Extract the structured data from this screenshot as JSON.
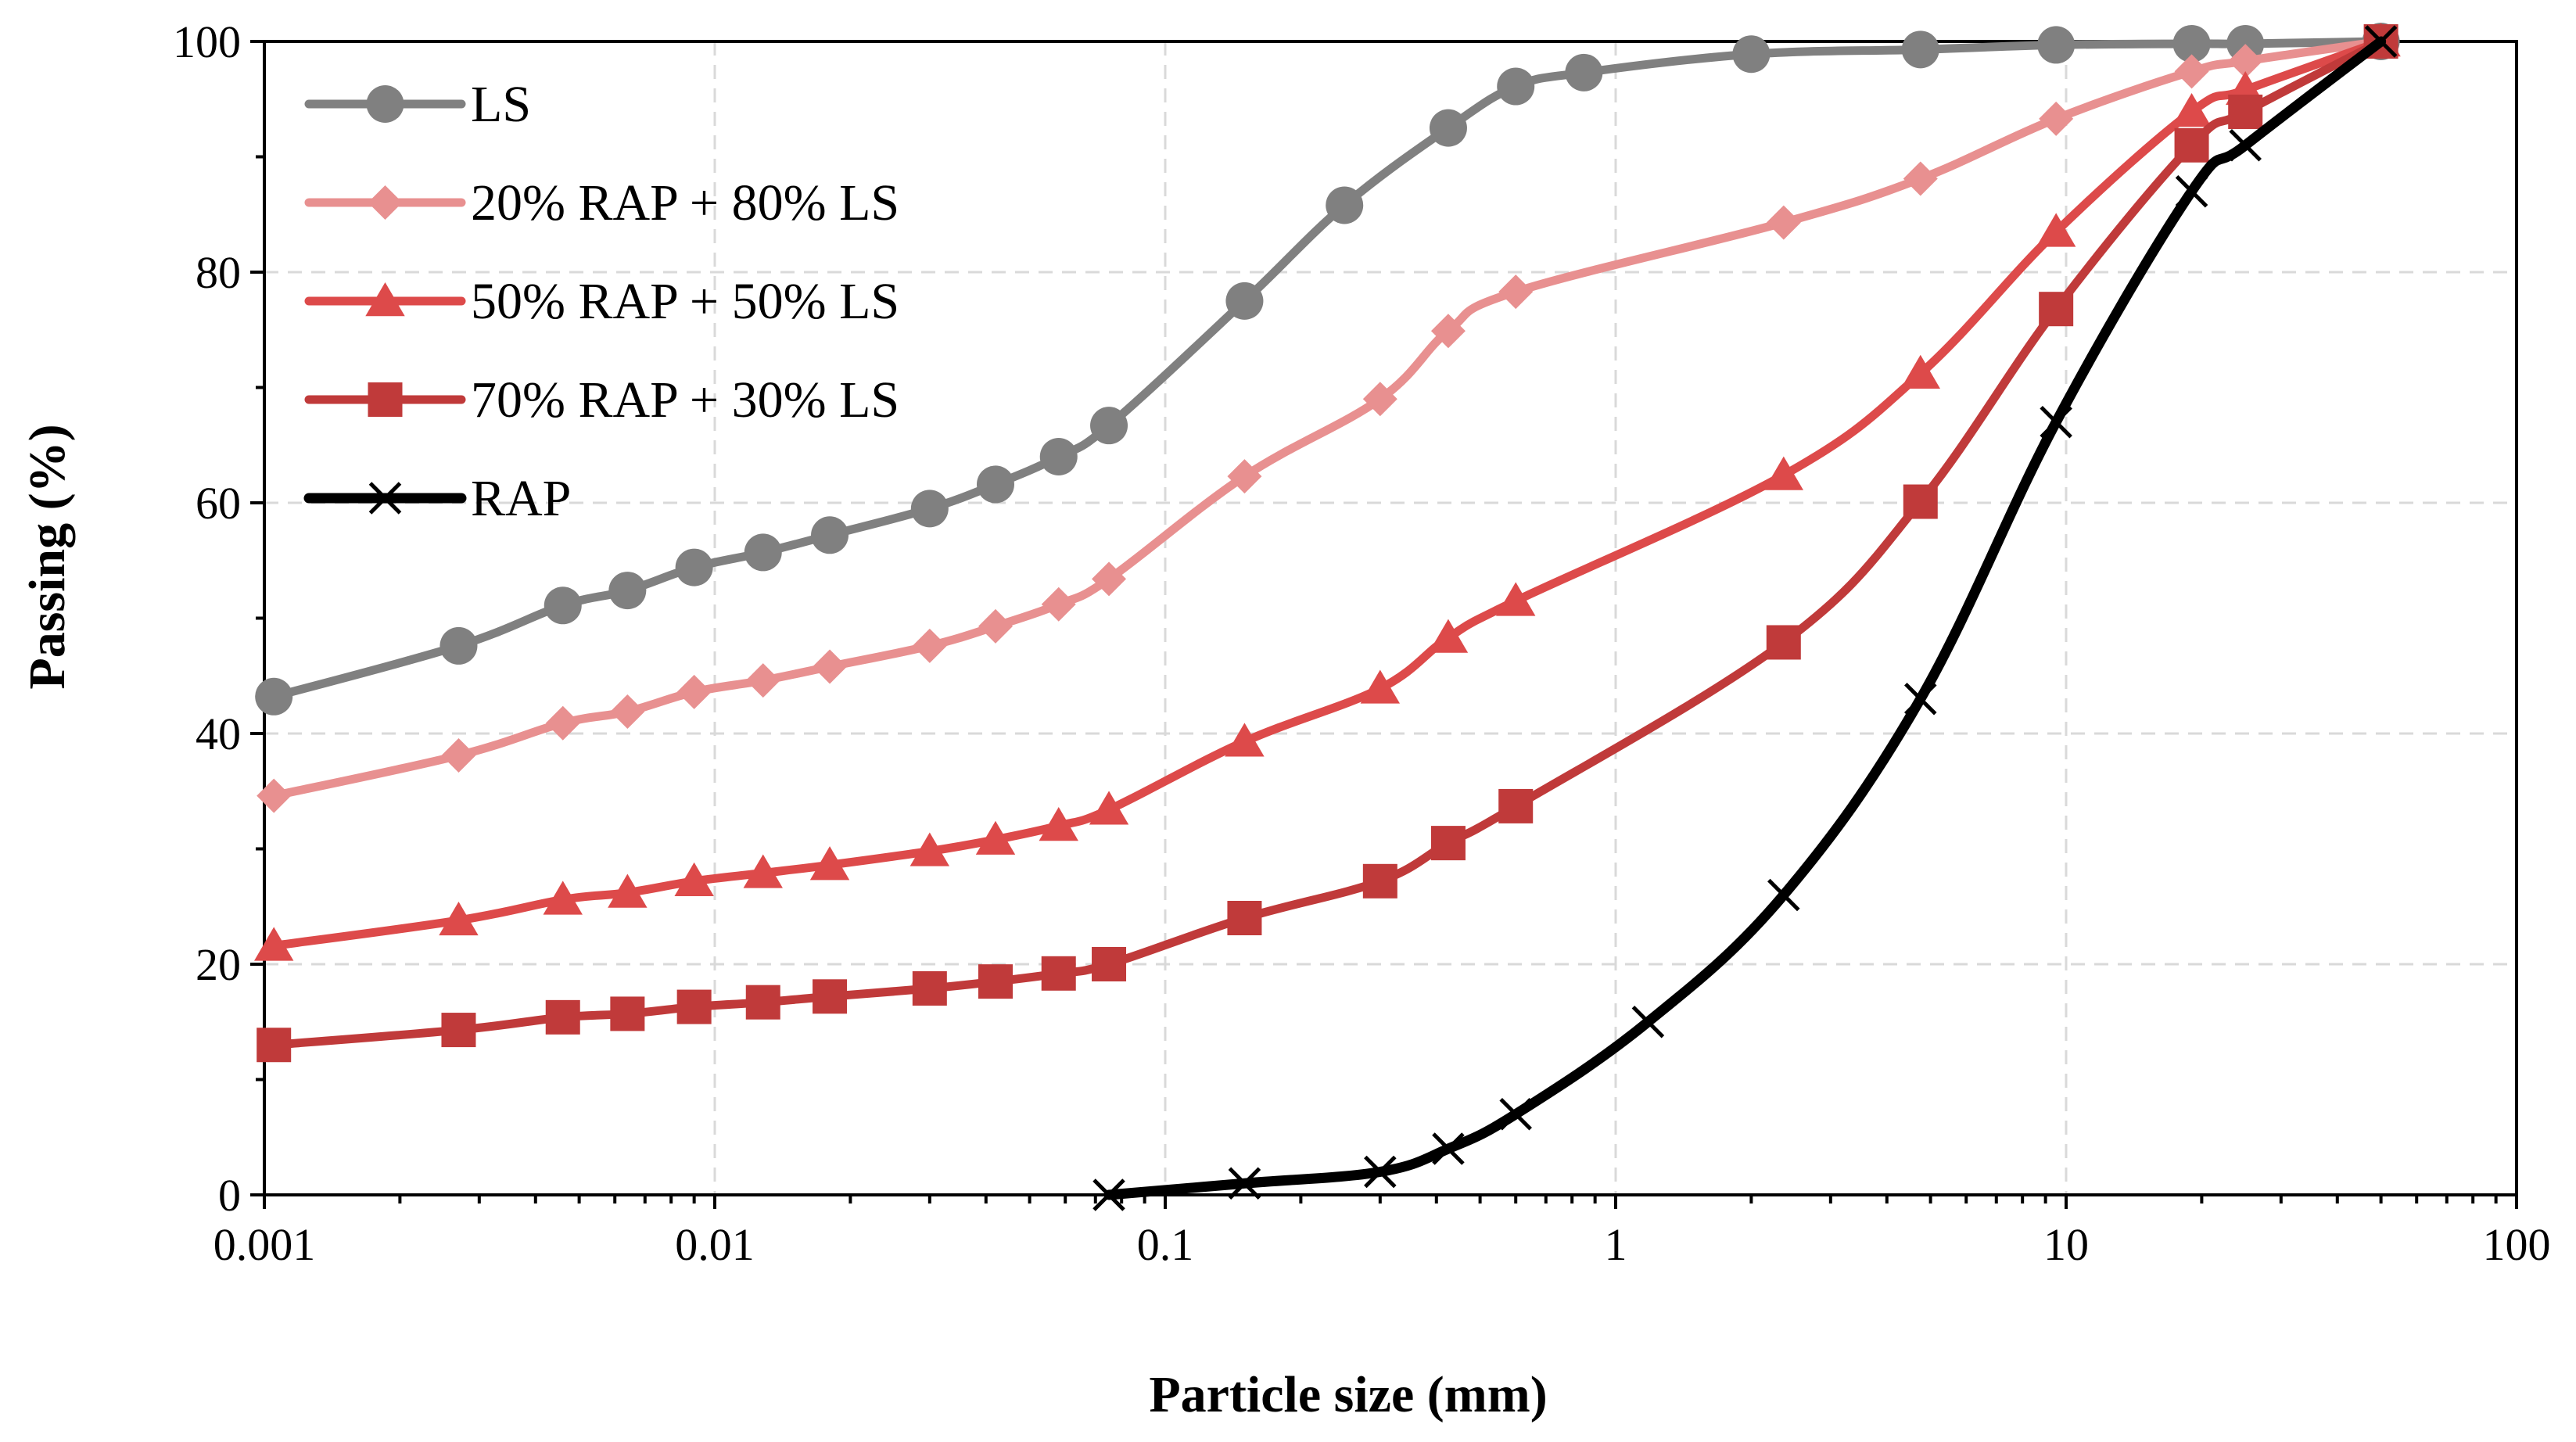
{
  "chart_data": {
    "type": "line",
    "title": "",
    "xlabel": "Particle size (mm)",
    "ylabel": "Passing (%)",
    "xscale": "log",
    "xlim": [
      0.001,
      100
    ],
    "ylim": [
      0,
      100
    ],
    "xticks": [
      "0.001",
      "0.01",
      "0.1",
      "1",
      "10",
      "100"
    ],
    "yticks": [
      "0",
      "20",
      "40",
      "60",
      "80",
      "100"
    ],
    "grid": true,
    "legend_position": "top-left",
    "series": [
      {
        "name": "LS",
        "color": "#808080",
        "marker": "circle",
        "x": [
          0.00105,
          0.0027,
          0.0046,
          0.0064,
          0.009,
          0.0128,
          0.018,
          0.03,
          0.042,
          0.058,
          0.075,
          0.15,
          0.25,
          0.425,
          0.6,
          0.85,
          2,
          4.75,
          9.5,
          19,
          25,
          50
        ],
        "y": [
          43.2,
          47.6,
          51.1,
          52.4,
          54.4,
          55.7,
          57.2,
          59.5,
          61.6,
          64.0,
          66.7,
          77.5,
          85.8,
          92.5,
          96.1,
          97.3,
          98.9,
          99.3,
          99.7,
          99.8,
          99.8,
          100
        ]
      },
      {
        "name": "20% RAP + 80% LS",
        "color": "#e89090",
        "marker": "diamond",
        "x": [
          0.00105,
          0.0027,
          0.0046,
          0.0064,
          0.009,
          0.0128,
          0.018,
          0.03,
          0.042,
          0.058,
          0.075,
          0.15,
          0.3,
          0.425,
          0.6,
          2.36,
          4.75,
          9.5,
          19,
          25,
          50
        ],
        "y": [
          34.6,
          38.1,
          40.9,
          41.9,
          43.6,
          44.6,
          45.8,
          47.6,
          49.3,
          51.2,
          53.4,
          62.3,
          69.0,
          74.9,
          78.3,
          84.3,
          88.1,
          93.3,
          97.4,
          98.3,
          100
        ]
      },
      {
        "name": "50% RAP + 50% LS",
        "color": "#dd4a4a",
        "marker": "triangle",
        "x": [
          0.00105,
          0.0027,
          0.0046,
          0.0064,
          0.009,
          0.0128,
          0.018,
          0.03,
          0.042,
          0.058,
          0.075,
          0.15,
          0.3,
          0.425,
          0.6,
          2.36,
          4.75,
          9.5,
          19,
          25,
          50
        ],
        "y": [
          21.6,
          23.8,
          25.6,
          26.2,
          27.2,
          27.9,
          28.6,
          29.8,
          30.8,
          32.0,
          33.4,
          39.3,
          43.9,
          48.3,
          51.5,
          62.4,
          71.2,
          83.5,
          93.9,
          95.8,
          100
        ]
      },
      {
        "name": "70% RAP + 30% LS",
        "color": "#c03a3a",
        "marker": "square",
        "x": [
          0.00105,
          0.0027,
          0.0046,
          0.0064,
          0.009,
          0.0128,
          0.018,
          0.03,
          0.042,
          0.058,
          0.075,
          0.15,
          0.3,
          0.425,
          0.6,
          2.36,
          4.75,
          9.5,
          19,
          25,
          50
        ],
        "y": [
          13.0,
          14.3,
          15.4,
          15.7,
          16.3,
          16.7,
          17.2,
          17.9,
          18.5,
          19.2,
          20.0,
          24.0,
          27.2,
          30.5,
          33.7,
          47.9,
          60.1,
          76.8,
          91.0,
          93.9,
          100
        ]
      },
      {
        "name": "RAP",
        "color": "#000000",
        "marker": "x",
        "x": [
          0.075,
          0.15,
          0.3,
          0.425,
          0.6,
          1.18,
          2.36,
          4.75,
          9.5,
          19,
          25,
          50
        ],
        "y": [
          0.0,
          1.0,
          2.0,
          4.0,
          7.0,
          15.0,
          26.0,
          43.0,
          67.0,
          87.0,
          91.0,
          100
        ]
      }
    ]
  }
}
